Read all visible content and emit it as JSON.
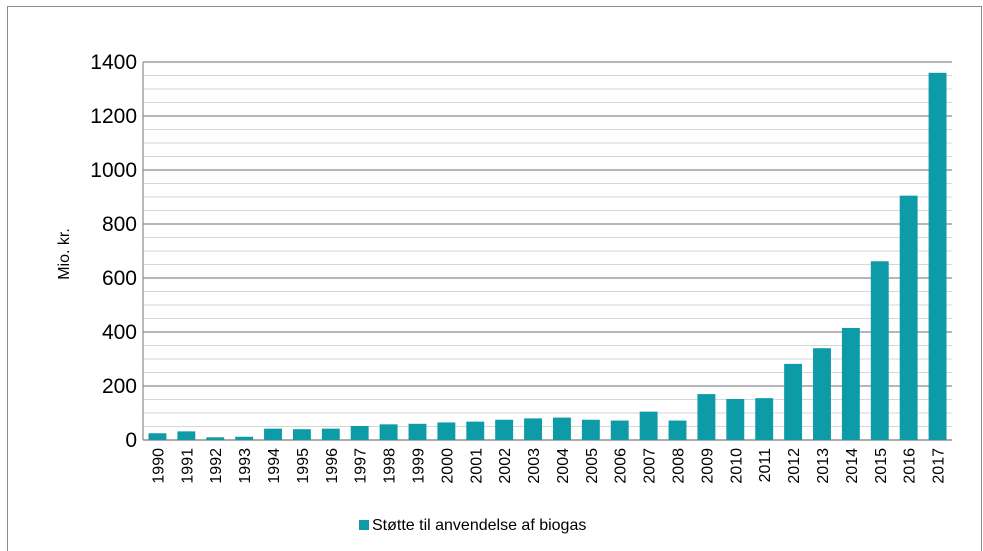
{
  "chart_data": {
    "type": "bar",
    "title": "",
    "xlabel": "",
    "ylabel": "Mio. kr.",
    "ylim": [
      0,
      1400
    ],
    "yticks": [
      0,
      200,
      400,
      600,
      800,
      1000,
      1200,
      1400
    ],
    "grid": true,
    "minor_gridlines": true,
    "legend_position": "bottom",
    "categories": [
      "1990",
      "1991",
      "1992",
      "1993",
      "1994",
      "1995",
      "1996",
      "1997",
      "1998",
      "1999",
      "2000",
      "2001",
      "2002",
      "2003",
      "2004",
      "2005",
      "2006",
      "2007",
      "2008",
      "2009",
      "2010",
      "2011",
      "2012",
      "2013",
      "2014",
      "2015",
      "2016",
      "2017"
    ],
    "series": [
      {
        "name": "Støtte til anvendelse af biogas",
        "color": "#0e9ba8",
        "values": [
          25,
          32,
          10,
          12,
          42,
          40,
          42,
          52,
          58,
          60,
          65,
          68,
          75,
          80,
          83,
          75,
          72,
          105,
          72,
          170,
          152,
          155,
          282,
          340,
          415,
          662,
          905,
          1360
        ]
      }
    ]
  }
}
